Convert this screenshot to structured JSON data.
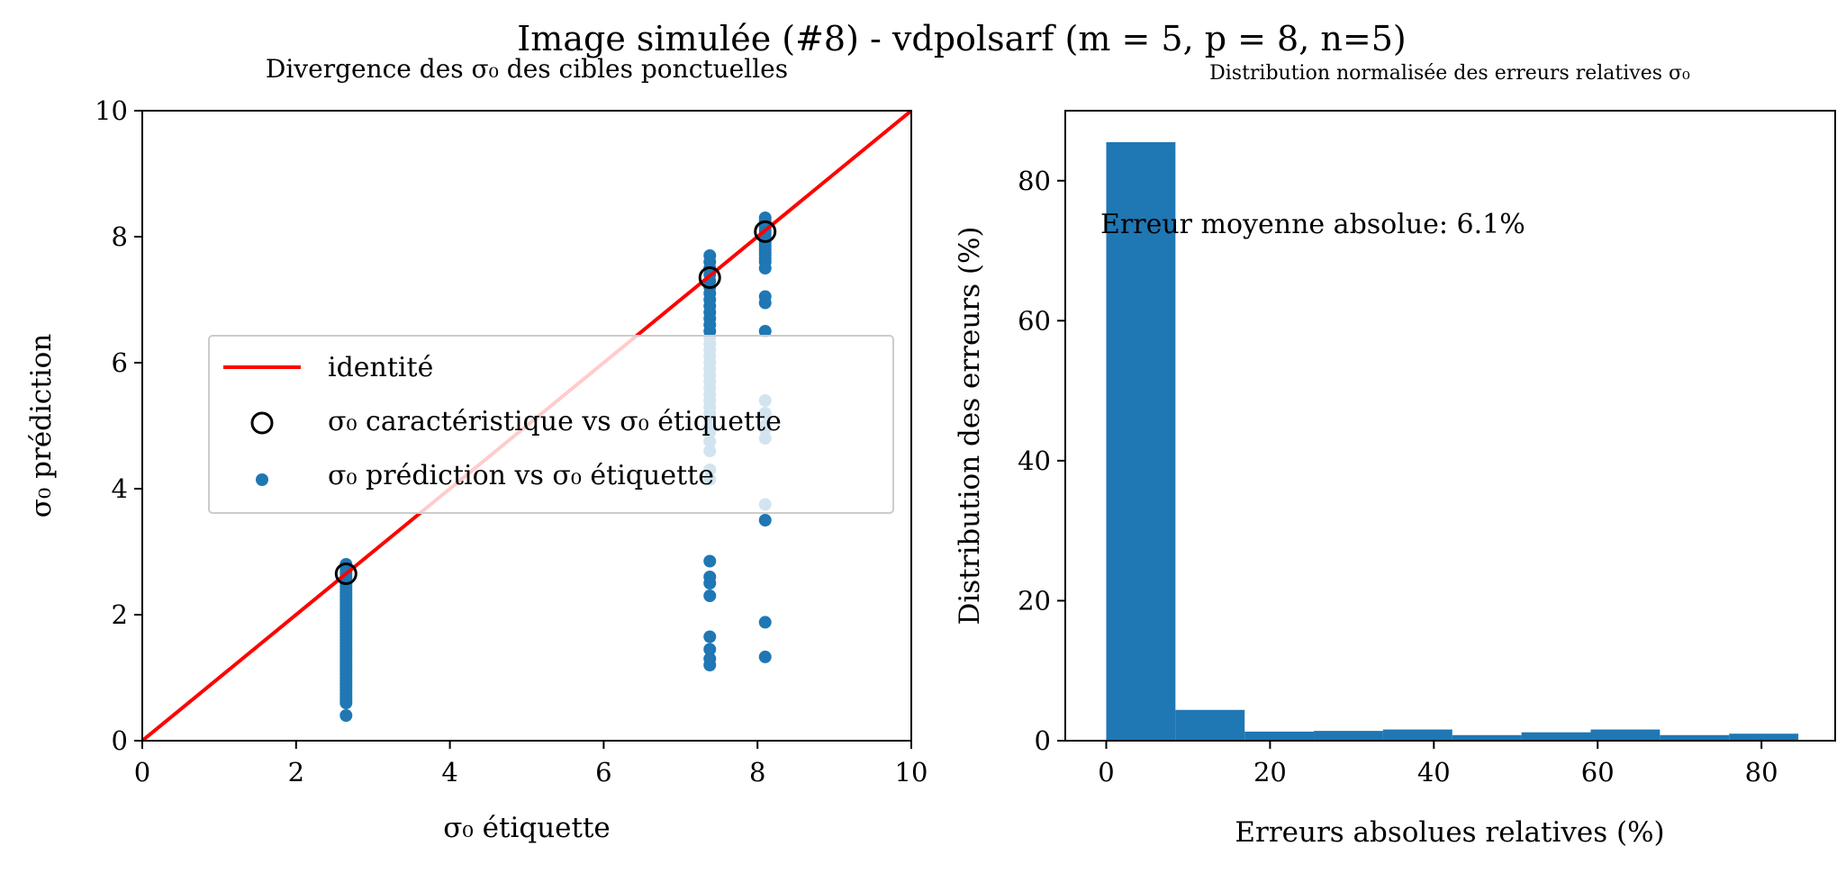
{
  "figure_title": "Image simulée (#8) - vdpolsarf (m = 5, p = 8, n=5)",
  "colors": {
    "identity_line": "#ff0000",
    "prediction_points": "#1f77b4",
    "hist_bars": "#1f77b4",
    "characteristic_marker": "#000000"
  },
  "chart_data": [
    {
      "type": "scatter",
      "title": "Divergence des σ₀ des cibles ponctuelles",
      "xlabel": "σ₀ étiquette",
      "ylabel": "σ₀ prédiction",
      "xlim": [
        0,
        10
      ],
      "ylim": [
        0,
        10
      ],
      "xticks": [
        "0",
        "2",
        "4",
        "6",
        "8",
        "10"
      ],
      "yticks": [
        "0",
        "2",
        "4",
        "6",
        "8",
        "10"
      ],
      "grid": false,
      "legend_position": "center-left",
      "identity_line": {
        "label": "identité",
        "x": [
          0,
          10
        ],
        "y": [
          0,
          10
        ]
      },
      "characteristic": {
        "label": "σ₀ caractéristique vs σ₀ étiquette",
        "x": [
          2.65,
          7.38,
          8.1
        ],
        "y": [
          2.65,
          7.35,
          8.08
        ]
      },
      "predictions": {
        "label": "σ₀ prédiction vs σ₀ étiquette",
        "groups": [
          {
            "x": 2.65,
            "y": [
              2.8,
              2.75,
              2.7,
              2.65,
              2.6,
              2.55,
              2.5,
              2.45,
              2.4,
              2.35,
              2.3,
              2.25,
              2.2,
              2.15,
              2.1,
              2.05,
              2.0,
              1.95,
              1.9,
              1.85,
              1.8,
              1.75,
              1.7,
              1.65,
              1.6,
              1.55,
              1.5,
              1.45,
              1.4,
              1.35,
              1.3,
              1.25,
              1.2,
              1.15,
              1.1,
              1.05,
              1.0,
              0.95,
              0.9,
              0.85,
              0.8,
              0.75,
              0.7,
              0.65,
              0.6,
              0.4
            ]
          },
          {
            "x": 7.38,
            "y": [
              7.7,
              7.6,
              7.5,
              7.4,
              7.3,
              7.2,
              7.1,
              7.0,
              6.9,
              6.8,
              6.7,
              6.6,
              6.5,
              6.4,
              6.3,
              6.2,
              6.1,
              6.0,
              5.9,
              5.8,
              5.7,
              5.6,
              5.5,
              5.4,
              5.3,
              5.2,
              5.1,
              5.0,
              4.9,
              4.75,
              4.6,
              4.3,
              4.15,
              2.85,
              2.6,
              2.5,
              2.3,
              1.65,
              1.45,
              1.3,
              1.2
            ]
          },
          {
            "x": 8.1,
            "y": [
              8.3,
              8.25,
              8.2,
              8.15,
              8.1,
              8.05,
              8.0,
              7.95,
              7.9,
              7.85,
              7.8,
              7.75,
              7.7,
              7.65,
              7.6,
              7.5,
              7.05,
              6.95,
              6.5,
              5.4,
              5.2,
              5.0,
              4.95,
              4.8,
              3.75,
              3.5,
              1.88,
              1.33
            ]
          }
        ]
      }
    },
    {
      "type": "bar",
      "title": "Distribution normalisée des erreurs relatives σ₀",
      "xlabel": "Erreurs absolues relatives (%)",
      "ylabel": "Distribution des erreurs (%)",
      "xlim": [
        -5,
        89
      ],
      "ylim": [
        0,
        90
      ],
      "xticks": [
        "0",
        "20",
        "40",
        "60",
        "80"
      ],
      "yticks": [
        "0",
        "20",
        "40",
        "60",
        "80"
      ],
      "grid": false,
      "bin_edges": [
        0,
        8.45,
        16.9,
        25.35,
        33.8,
        42.25,
        50.7,
        59.15,
        67.6,
        76.05,
        84.5
      ],
      "values": [
        85.5,
        4.4,
        1.3,
        1.4,
        1.6,
        0.8,
        1.2,
        1.6,
        0.8,
        1.0
      ],
      "annotation": "Erreur moyenne absolue: 6.1%"
    }
  ]
}
